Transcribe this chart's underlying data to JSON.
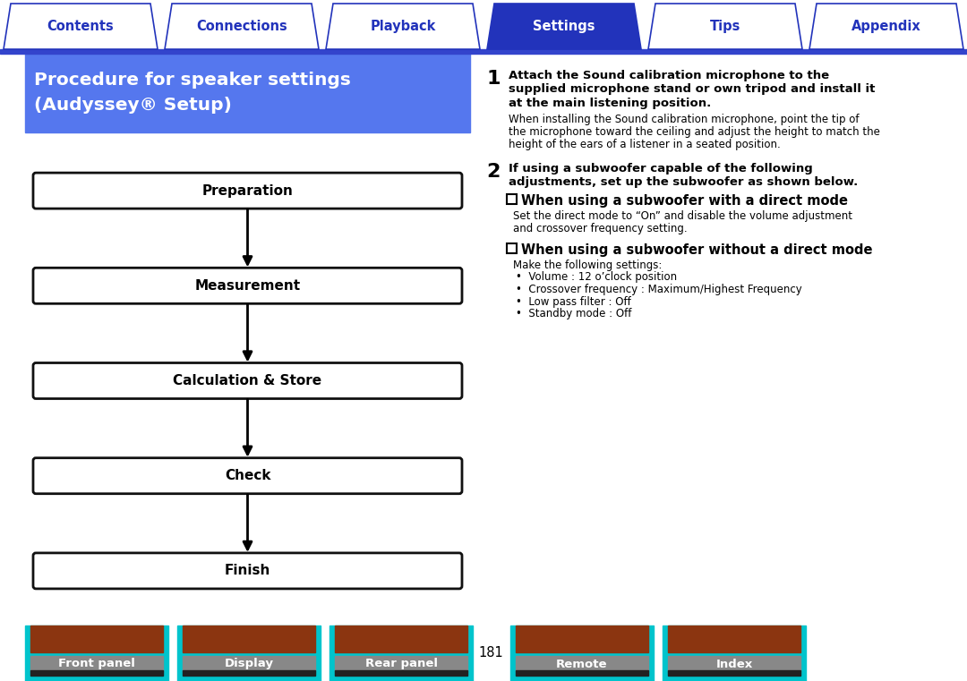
{
  "bg_color": "#ffffff",
  "top_tabs": [
    "Contents",
    "Connections",
    "Playback",
    "Settings",
    "Tips",
    "Appendix"
  ],
  "active_tab": "Settings",
  "active_tab_color": "#2233bb",
  "inactive_tab_color": "#ffffff",
  "tab_text_color_inactive": "#2233bb",
  "tab_text_color_active": "#ffffff",
  "tab_border_color": "#2233bb",
  "tab_line_color": "#3344cc",
  "header_bg": "#5577ee",
  "header_text_line1": "Procedure for speaker settings",
  "header_text_line2": "(Audyssey® Setup)",
  "header_text_color": "#ffffff",
  "flow_boxes": [
    "Preparation",
    "Measurement",
    "Calculation & Store",
    "Check",
    "Finish"
  ],
  "flow_box_border": "#111111",
  "flow_box_bg": "#ffffff",
  "flow_text_color": "#000000",
  "arrow_color": "#000000",
  "step1_bold_lines": [
    "Attach the Sound calibration microphone to the",
    "supplied microphone stand or own tripod and install it",
    "at the main listening position."
  ],
  "step1_normal_lines": [
    "When installing the Sound calibration microphone, point the tip of",
    "the microphone toward the ceiling and adjust the height to match the",
    "height of the ears of a listener in a seated position."
  ],
  "step2_bold_lines": [
    "If using a subwoofer capable of the following",
    "adjustments, set up the subwoofer as shown below."
  ],
  "sub1_header": "When using a subwoofer with a direct mode",
  "sub1_lines": [
    "Set the direct mode to “On” and disable the volume adjustment",
    "and crossover frequency setting."
  ],
  "sub2_header": "When using a subwoofer without a direct mode",
  "sub2_intro": "Make the following settings:",
  "bullet_items": [
    "Volume : 12 o’clock position",
    "Crossover frequency : Maximum/Highest Frequency",
    "Low pass filter : Off",
    "Standby mode : Off"
  ],
  "page_number": "181",
  "bottom_tabs": [
    "Front panel",
    "Display",
    "Rear panel",
    "Remote",
    "Index"
  ],
  "bottom_tab_bg": "#00c4cc",
  "bottom_tab_rust": "#8b3510",
  "bottom_tab_gray": "#888888",
  "bottom_tab_dark": "#222222",
  "bottom_tab_text_color": "#ffffff"
}
